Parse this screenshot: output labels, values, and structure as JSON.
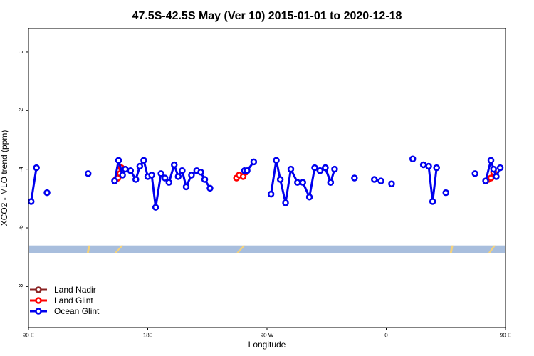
{
  "chart_data": {
    "type": "line",
    "title": "47.5S-42.5S May (Ver 10)   2015-01-01 to 2020-12-18",
    "xlabel": "Longitude",
    "ylabel": "XCO2 - MLO trend (ppm)",
    "xlim": [
      90,
      450
    ],
    "ylim": [
      -9.4,
      0.8
    ],
    "xticks": [
      {
        "value": 90,
        "label": "90 E"
      },
      {
        "value": 180,
        "label": "180"
      },
      {
        "value": 270,
        "label": "90 W"
      },
      {
        "value": 360,
        "label": "0"
      },
      {
        "value": 450,
        "label": "90 E"
      },
      {
        "value": 540,
        "label": "180"
      }
    ],
    "yticks": [
      0,
      -2,
      -4,
      -6,
      -8
    ],
    "land_band": {
      "y_range": [
        -6.85,
        -6.6
      ],
      "color": "#a8bedd",
      "land_color": "#f5d27a"
    },
    "colors": {
      "land_nadir": "#8b2323",
      "land_glint": "#ff0000",
      "ocean_glint": "#0000ee"
    },
    "legend_position": "bottom-left",
    "series": [
      {
        "name": "Land Nadir",
        "color": "#8b2323",
        "x": [],
        "y": []
      },
      {
        "name": "Land Glint",
        "color": "#ff0000",
        "segments": [
          {
            "x": [
              156,
              157.5,
              159,
              160
            ],
            "y": [
              -4.35,
              -4.3,
              -4.15,
              -3.95
            ]
          },
          {
            "x": [
              247,
              249,
              252,
              254
            ],
            "y": [
              -4.3,
              -4.2,
              -4.25,
              -4.1
            ]
          },
          {
            "x": [
              437,
              439,
              441
            ],
            "y": [
              -4.35,
              -4.3,
              -4.1
            ]
          }
        ]
      },
      {
        "name": "Ocean Glint",
        "color": "#0000ee",
        "segments": [
          {
            "x": [
              92,
              96
            ],
            "y": [
              -5.1,
              -3.95
            ]
          },
          {
            "x": [
              104
            ],
            "y": [
              -4.8
            ]
          },
          {
            "x": [
              135
            ],
            "y": [
              -4.15
            ]
          },
          {
            "x": [
              155,
              158,
              161,
              163,
              167,
              171,
              174,
              177,
              180,
              183,
              186,
              190,
              193,
              196,
              200,
              203,
              206,
              209,
              213,
              217,
              220,
              223,
              227
            ],
            "y": [
              -4.4,
              -3.7,
              -4.2,
              -4.0,
              -4.05,
              -4.35,
              -3.9,
              -3.7,
              -4.25,
              -4.2,
              -5.3,
              -4.15,
              -4.3,
              -4.45,
              -3.85,
              -4.25,
              -4.05,
              -4.6,
              -4.2,
              -4.05,
              -4.1,
              -4.35,
              -4.65
            ]
          },
          {
            "x": [
              253,
              255,
              260
            ],
            "y": [
              -4.05,
              -4.05,
              -3.75
            ]
          },
          {
            "x": [
              273,
              277,
              280,
              284,
              288,
              293,
              297,
              302,
              306,
              310,
              314,
              318
            ],
            "y": [
              -4.85,
              -3.7,
              -4.35,
              -5.15,
              -4.0,
              -4.45,
              -4.45,
              -4.95,
              -3.95,
              -4.05,
              -3.95,
              -4.45
            ]
          },
          {
            "x": [
              310,
              314,
              318,
              321
            ],
            "y": [
              -4.05,
              -3.95,
              -4.45,
              -4.0
            ]
          },
          {
            "x": [
              336
            ],
            "y": [
              -4.3
            ]
          },
          {
            "x": [
              351,
              356
            ],
            "y": [
              -4.35,
              -4.4
            ]
          },
          {
            "x": [
              364
            ],
            "y": [
              -4.5
            ]
          },
          {
            "x": [
              380
            ],
            "y": [
              -3.65
            ]
          },
          {
            "x": [
              388,
              392,
              395,
              398
            ],
            "y": [
              -3.85,
              -3.9,
              -5.1,
              -3.95
            ]
          },
          {
            "x": [
              405
            ],
            "y": [
              -4.8
            ]
          },
          {
            "x": [
              427
            ],
            "y": [
              -4.15
            ]
          },
          {
            "x": [
              435,
              439,
              441,
              443,
              446
            ],
            "y": [
              -4.4,
              -3.7,
              -4.0,
              -4.25,
              -3.95
            ]
          }
        ]
      }
    ]
  }
}
